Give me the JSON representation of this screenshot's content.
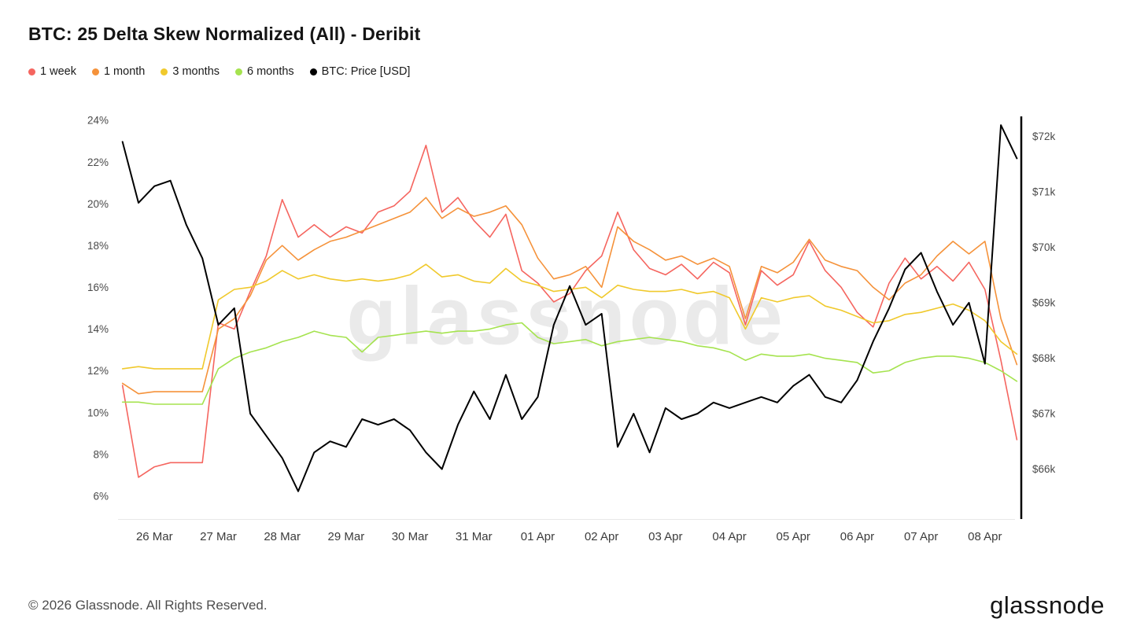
{
  "watermark": {
    "text": "glassnode"
  },
  "footer": {
    "copyright": "© 2026 Glassnode. All Rights Reserved.",
    "logo_text": "glassnode"
  },
  "chart_data": {
    "type": "line",
    "title": "BTC: 25 Delta Skew Normalized (All) - Deribit",
    "layout": {
      "grid": false,
      "legend_position": "top-left"
    },
    "x_axis": {
      "unit": "date (0 = 26 Mar)",
      "range": [
        -0.57,
        13.47
      ],
      "tick_values": [
        0,
        1,
        2,
        3,
        4,
        5,
        6,
        7,
        8,
        9,
        10,
        11,
        12,
        13
      ],
      "tick_labels": [
        "26 Mar",
        "27 Mar",
        "28 Mar",
        "29 Mar",
        "30 Mar",
        "31 Mar",
        "01 Apr",
        "02 Apr",
        "03 Apr",
        "04 Apr",
        "05 Apr",
        "06 Apr",
        "07 Apr",
        "08 Apr"
      ]
    },
    "left_axis": {
      "unit": "skew %",
      "range": [
        4.9,
        24.3
      ],
      "tick_values": [
        6,
        8,
        10,
        12,
        14,
        16,
        18,
        20,
        22,
        24
      ],
      "tick_labels": [
        "6%",
        "8%",
        "10%",
        "12%",
        "14%",
        "16%",
        "18%",
        "20%",
        "22%",
        "24%"
      ]
    },
    "right_axis": {
      "unit": "USD thousands",
      "range": [
        65.1,
        72.4
      ],
      "tick_values": [
        66,
        67,
        68,
        69,
        70,
        71,
        72
      ],
      "tick_labels": [
        "$66k",
        "$67k",
        "$68k",
        "$69k",
        "$70k",
        "$71k",
        "$72k"
      ]
    },
    "x": [
      -0.5,
      -0.25,
      0,
      0.25,
      0.5,
      0.75,
      1,
      1.25,
      1.5,
      1.75,
      2,
      2.25,
      2.5,
      2.75,
      3,
      3.25,
      3.5,
      3.75,
      4,
      4.25,
      4.5,
      4.75,
      5,
      5.25,
      5.5,
      5.75,
      6,
      6.25,
      6.5,
      6.75,
      7,
      7.25,
      7.5,
      7.75,
      8,
      8.25,
      8.5,
      8.75,
      9,
      9.25,
      9.5,
      9.75,
      10,
      10.25,
      10.5,
      10.75,
      11,
      11.25,
      11.5,
      11.75,
      12,
      12.25,
      12.5,
      12.75,
      13,
      13.25,
      13.5
    ],
    "series": [
      {
        "name": "1 week",
        "color": "#f5655f",
        "axis": "left",
        "values": [
          11.3,
          6.9,
          7.4,
          7.6,
          7.6,
          7.6,
          14.3,
          14.0,
          15.8,
          17.5,
          20.2,
          18.4,
          19.0,
          18.4,
          18.9,
          18.6,
          19.6,
          19.9,
          20.6,
          22.8,
          19.6,
          20.3,
          19.2,
          18.4,
          19.5,
          16.8,
          16.2,
          15.3,
          15.7,
          16.8,
          17.5,
          19.6,
          17.8,
          16.9,
          16.6,
          17.1,
          16.4,
          17.2,
          16.7,
          14.2,
          16.8,
          16.1,
          16.6,
          18.2,
          16.8,
          16.0,
          14.8,
          14.1,
          16.2,
          17.4,
          16.4,
          17.0,
          16.3,
          17.2,
          15.9,
          12.5,
          8.7
        ]
      },
      {
        "name": "1 month",
        "color": "#f5923a",
        "axis": "left",
        "values": [
          11.4,
          10.9,
          11.0,
          11.0,
          11.0,
          11.0,
          14.0,
          14.5,
          15.6,
          17.3,
          18.0,
          17.3,
          17.8,
          18.2,
          18.4,
          18.7,
          19.0,
          19.3,
          19.6,
          20.3,
          19.3,
          19.8,
          19.4,
          19.6,
          19.9,
          19.0,
          17.4,
          16.4,
          16.6,
          17.0,
          16.0,
          18.9,
          18.2,
          17.8,
          17.3,
          17.5,
          17.1,
          17.4,
          17.0,
          14.5,
          17.0,
          16.7,
          17.2,
          18.3,
          17.3,
          17.0,
          16.8,
          16.0,
          15.4,
          16.2,
          16.6,
          17.5,
          18.2,
          17.6,
          18.2,
          14.5,
          12.3
        ]
      },
      {
        "name": "3 months",
        "color": "#f0c92c",
        "axis": "left",
        "values": [
          12.1,
          12.2,
          12.1,
          12.1,
          12.1,
          12.1,
          15.4,
          15.9,
          16.0,
          16.3,
          16.8,
          16.4,
          16.6,
          16.4,
          16.3,
          16.4,
          16.3,
          16.4,
          16.6,
          17.1,
          16.5,
          16.6,
          16.3,
          16.2,
          16.9,
          16.3,
          16.1,
          15.8,
          15.9,
          16.0,
          15.5,
          16.1,
          15.9,
          15.8,
          15.8,
          15.9,
          15.7,
          15.8,
          15.5,
          14.0,
          15.5,
          15.3,
          15.5,
          15.6,
          15.1,
          14.9,
          14.6,
          14.3,
          14.4,
          14.7,
          14.8,
          15.0,
          15.2,
          14.9,
          14.4,
          13.4,
          12.8
        ]
      },
      {
        "name": "6 months",
        "color": "#a5e34f",
        "axis": "left",
        "values": [
          10.5,
          10.5,
          10.4,
          10.4,
          10.4,
          10.4,
          12.1,
          12.6,
          12.9,
          13.1,
          13.4,
          13.6,
          13.9,
          13.7,
          13.6,
          12.9,
          13.6,
          13.7,
          13.8,
          13.9,
          13.8,
          13.9,
          13.9,
          14.0,
          14.2,
          14.3,
          13.6,
          13.3,
          13.4,
          13.5,
          13.2,
          13.4,
          13.5,
          13.6,
          13.5,
          13.4,
          13.2,
          13.1,
          12.9,
          12.5,
          12.8,
          12.7,
          12.7,
          12.8,
          12.6,
          12.5,
          12.4,
          11.9,
          12.0,
          12.4,
          12.6,
          12.7,
          12.7,
          12.6,
          12.4,
          12.0,
          11.5
        ]
      },
      {
        "name": "BTC: Price [USD]",
        "color": "#000000",
        "axis": "right",
        "values": [
          71.9,
          70.8,
          71.1,
          71.2,
          70.4,
          69.8,
          68.6,
          68.9,
          67.0,
          66.6,
          66.2,
          65.6,
          66.3,
          66.5,
          66.4,
          66.9,
          66.8,
          66.9,
          66.7,
          66.3,
          66.0,
          66.8,
          67.4,
          66.9,
          67.7,
          66.9,
          67.3,
          68.6,
          69.3,
          68.6,
          68.8,
          66.4,
          67.0,
          66.3,
          67.1,
          66.9,
          67.0,
          67.2,
          67.1,
          67.2,
          67.3,
          67.2,
          67.5,
          67.7,
          67.3,
          67.2,
          67.6,
          68.3,
          68.9,
          69.6,
          69.9,
          69.2,
          68.6,
          69.0,
          67.9,
          72.2,
          71.6
        ]
      }
    ]
  }
}
